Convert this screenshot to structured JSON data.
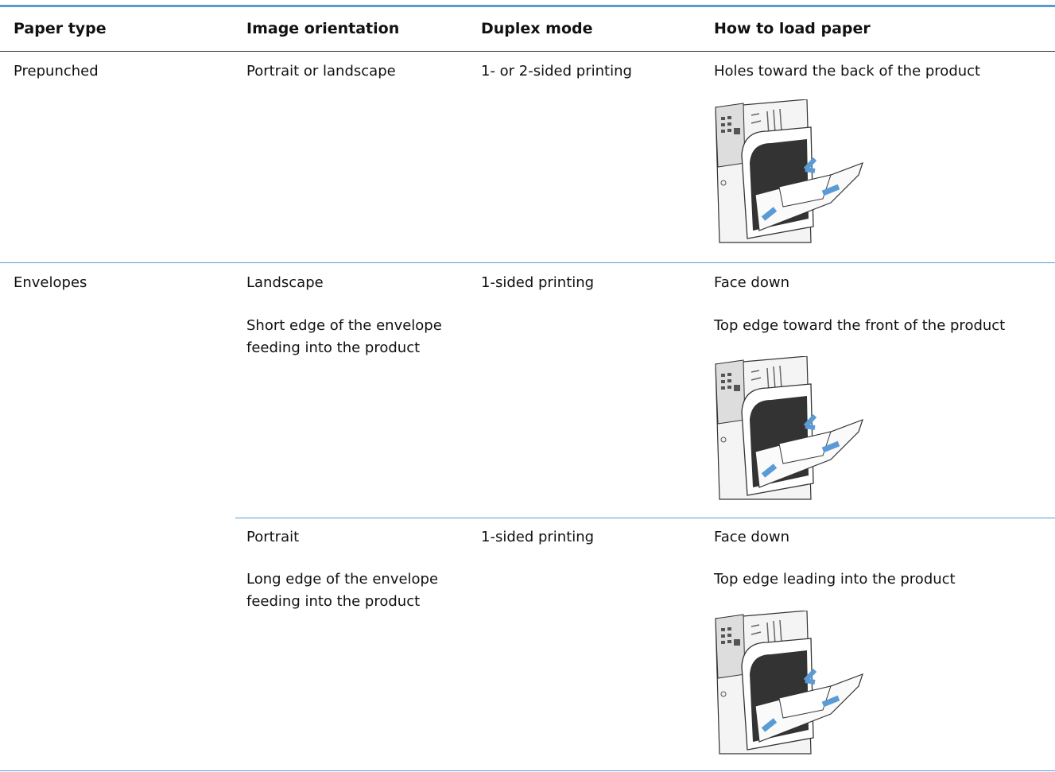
{
  "table": {
    "headers": [
      "Paper type",
      "Image orientation",
      "Duplex mode",
      "How to load paper"
    ],
    "rows": [
      {
        "paper_type": "Prepunched",
        "orientation": [
          "Portrait or landscape"
        ],
        "duplex": "1- or 2-sided printing",
        "loading": [
          "Holes toward the back of the product"
        ]
      },
      {
        "paper_type": "Envelopes",
        "orientation": [
          "Landscape",
          "Short edge of the envelope feeding into the product"
        ],
        "duplex": "1-sided printing",
        "loading": [
          "Face down",
          "Top edge toward the front of the product"
        ]
      },
      {
        "orientation": [
          "Portrait",
          "Long edge of the envelope feeding into the product"
        ],
        "duplex": "1-sided printing",
        "loading": [
          "Face down",
          "Top edge leading into the product"
        ]
      }
    ]
  }
}
